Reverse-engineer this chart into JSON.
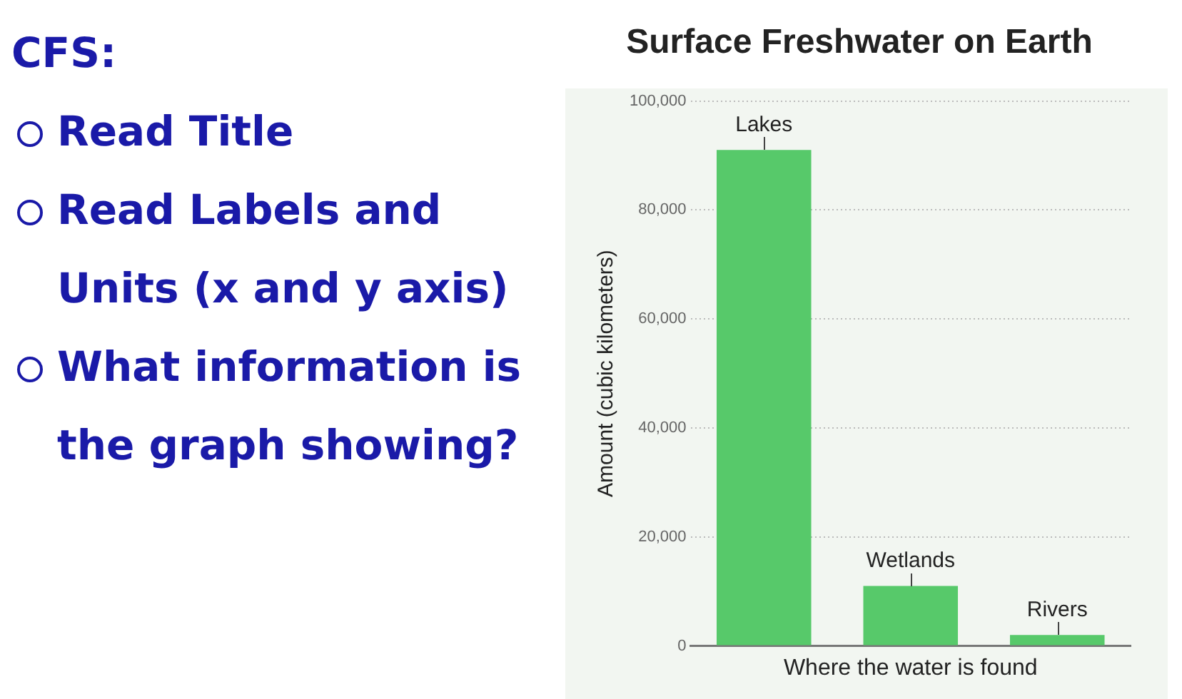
{
  "chart_data": {
    "type": "bar",
    "title": "Surface Freshwater on Earth",
    "xlabel": "Where the water is found",
    "ylabel": "Amount (cubic kilometers)",
    "categories": [
      "Lakes",
      "Wetlands",
      "Rivers"
    ],
    "values": [
      91000,
      11000,
      2000
    ],
    "color": "#57c96a",
    "ylim": [
      0,
      100000
    ],
    "yticks": [
      {
        "value": 0,
        "label": "0"
      },
      {
        "value": 20000,
        "label": "20,000"
      },
      {
        "value": 40000,
        "label": "40,000"
      },
      {
        "value": 60000,
        "label": "60,000"
      },
      {
        "value": 80000,
        "label": "80,000"
      },
      {
        "value": 100000,
        "label": "100,000"
      }
    ],
    "grid": "y",
    "tick_labels": "y",
    "annotations": [
      "CFS:",
      "Read Title",
      "Read Labels and Units (x and y axis)",
      "What information is the graph showing?"
    ]
  }
}
